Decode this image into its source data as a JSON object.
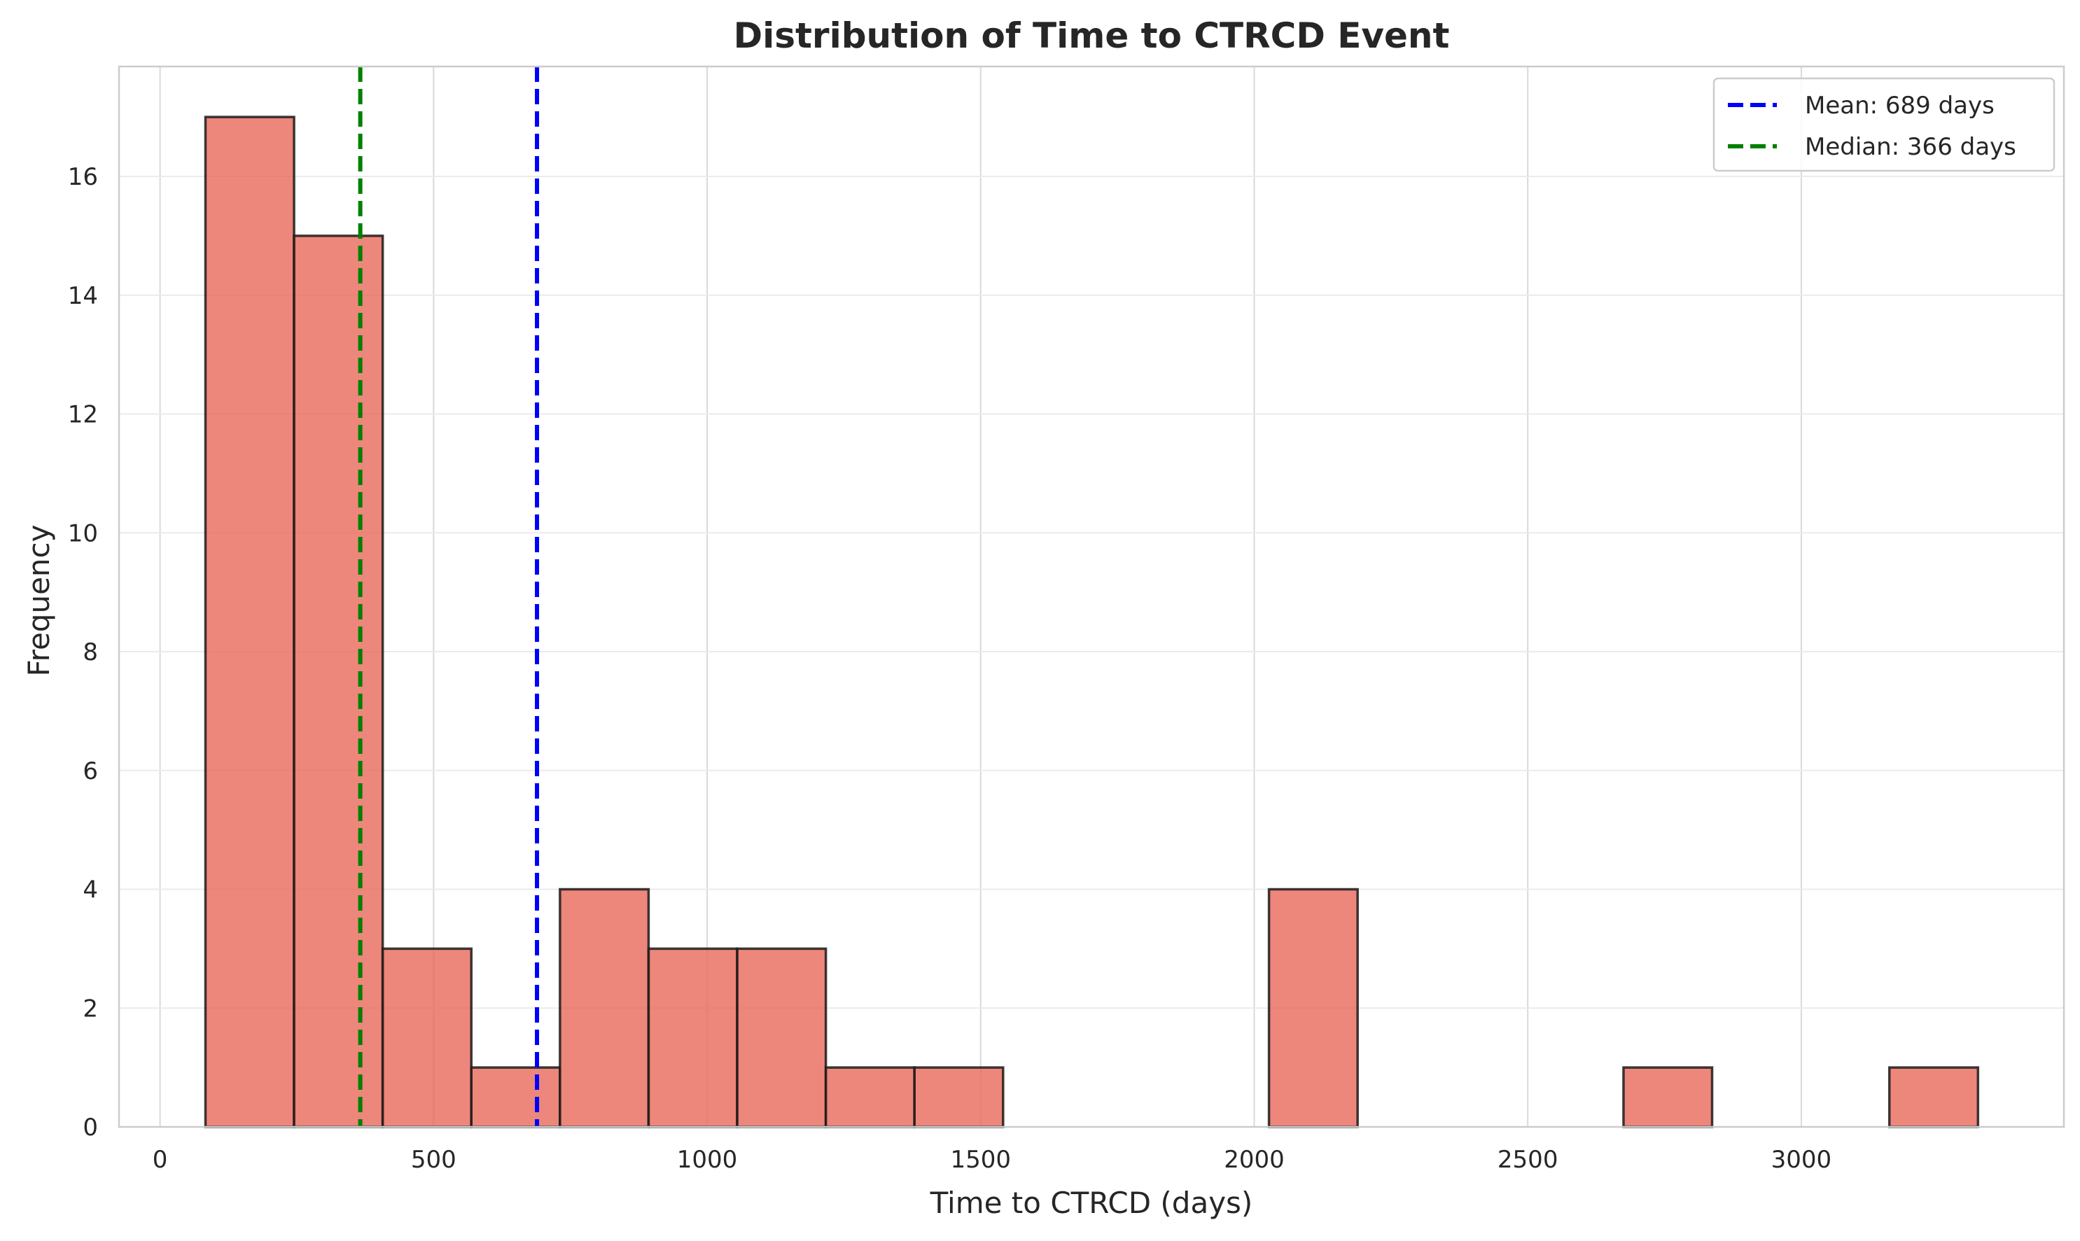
{
  "chart_data": {
    "type": "bar",
    "title": "Distribution of Time to CTRCD Event",
    "xlabel": "Time to CTRCD (days)",
    "ylabel": "Frequency",
    "xlim": [
      -75,
      3480
    ],
    "ylim": [
      0,
      17.85
    ],
    "x_ticks": [
      0,
      500,
      1000,
      1500,
      2000,
      2500,
      3000
    ],
    "y_ticks": [
      0,
      2,
      4,
      6,
      8,
      10,
      12,
      14,
      16
    ],
    "grid": true,
    "bin_edges": [
      83,
      245,
      407,
      569,
      731,
      893,
      1055,
      1217,
      1379,
      1541,
      1703,
      1865,
      2027,
      2189,
      2351,
      2513,
      2675,
      2837,
      2999,
      3161,
      3323
    ],
    "values": [
      17,
      15,
      3,
      1,
      4,
      3,
      3,
      1,
      1,
      0,
      0,
      0,
      4,
      0,
      0,
      0,
      1,
      0,
      0,
      1
    ],
    "bar_color": "#E8685A",
    "reference_lines": [
      {
        "label": "Mean: 689 days",
        "x": 689,
        "color": "#0000ff",
        "style": "dashed"
      },
      {
        "label": "Median: 366 days",
        "x": 366,
        "color": "#008000",
        "style": "dashed"
      }
    ],
    "legend_position": "top-right"
  }
}
